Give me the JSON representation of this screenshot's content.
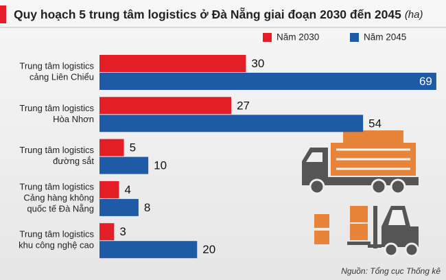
{
  "chart_data": {
    "type": "bar",
    "orientation": "horizontal",
    "title": "Quy hoạch 5 trung tâm logistics ở Đà Nẵng giai đoạn 2030 đến 2045",
    "unit": "(ha)",
    "categories": [
      [
        "Trung tâm logistics",
        "cảng Liên Chiểu"
      ],
      [
        "Trung tâm logistics",
        "Hòa Nhơn"
      ],
      [
        "Trung tâm logistics",
        "đường sắt"
      ],
      [
        "Trung tâm logistics",
        "Cảng hàng không",
        "quốc tế Đà Nẵng"
      ],
      [
        "Trung tâm logistics",
        "khu công nghệ cao"
      ]
    ],
    "series": [
      {
        "name": "Năm 2030",
        "color": "#e31e26",
        "values": [
          30,
          27,
          5,
          4,
          3
        ]
      },
      {
        "name": "Năm 2045",
        "color": "#1f5aa6",
        "values": [
          69,
          54,
          10,
          8,
          20
        ]
      }
    ],
    "xlim": [
      0,
      70
    ],
    "source": "Nguồn: Tổng cục Thống kê"
  }
}
